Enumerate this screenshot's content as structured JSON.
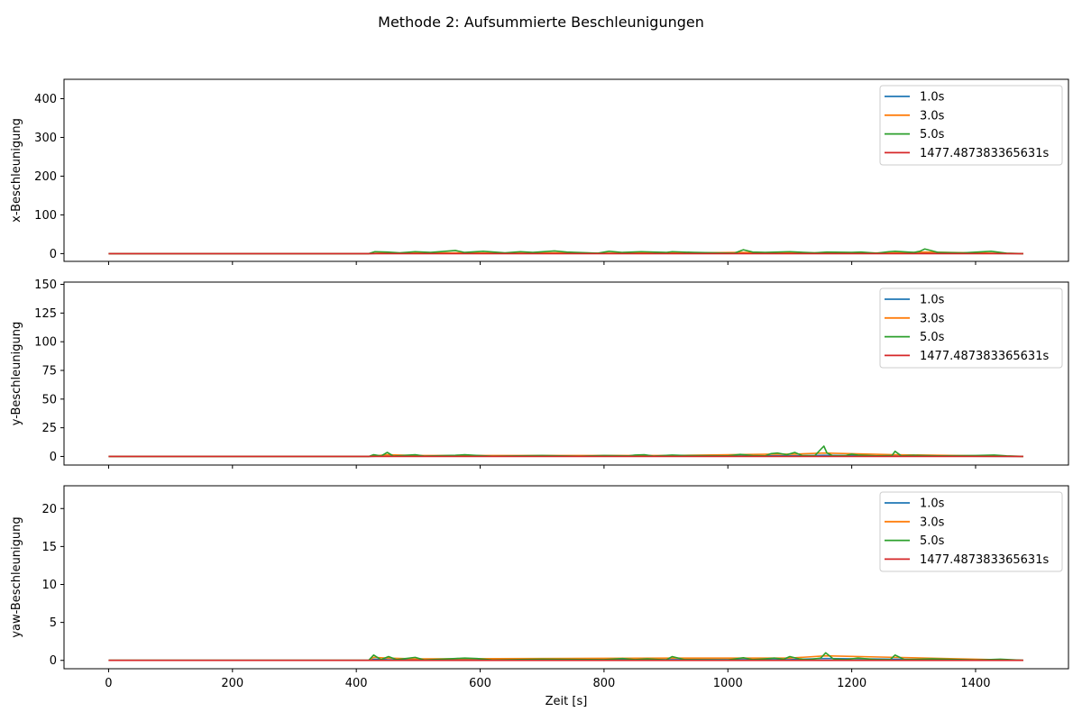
{
  "title": "Methode 2: Aufsummierte Beschleunigungen",
  "xlabel": "Zeit [s]",
  "colors": {
    "series_1": "#1f77b4",
    "series_2": "#ff7f0e",
    "series_3": "#2ca02c",
    "series_4": "#d62728"
  },
  "chart_data": [
    {
      "type": "line",
      "ylabel": "x-Beschleunigung",
      "xlim": [
        -72,
        1550
      ],
      "ylim": [
        -20,
        450
      ],
      "xticks": [
        0,
        200,
        400,
        600,
        800,
        1000,
        1200,
        1400
      ],
      "yticks": [
        0,
        100,
        200,
        300,
        400
      ],
      "show_xtick_labels": false,
      "legend": "top-right",
      "grid": false,
      "series": [
        {
          "name": "1.0s",
          "color": "#1f77b4",
          "x": [
            0,
            420,
            440,
            480,
            560,
            600,
            680,
            720,
            808,
            850,
            910,
            1020,
            1100,
            1200,
            1270,
            1320,
            1425,
            1477
          ],
          "y": [
            0,
            0,
            0.8,
            0.6,
            1.2,
            0.8,
            0.6,
            1,
            0.5,
            0.8,
            0.7,
            1.5,
            1.1,
            0.8,
            1,
            2,
            0.5,
            0
          ]
        },
        {
          "name": "3.0s",
          "color": "#ff7f0e",
          "x": [
            0,
            420,
            440,
            480,
            560,
            600,
            680,
            720,
            808,
            850,
            910,
            1020,
            1100,
            1200,
            1270,
            1320,
            1425,
            1477
          ],
          "y": [
            0,
            0,
            1.5,
            1,
            2,
            1.5,
            1.2,
            2,
            1,
            1.5,
            1.5,
            3,
            2,
            1.5,
            2,
            4,
            1,
            0
          ]
        },
        {
          "name": "5.0s",
          "color": "#2ca02c",
          "x": [
            0,
            420,
            430,
            450,
            470,
            495,
            520,
            560,
            575,
            605,
            640,
            665,
            685,
            720,
            740,
            790,
            808,
            830,
            860,
            900,
            910,
            945,
            1010,
            1025,
            1040,
            1060,
            1100,
            1140,
            1160,
            1200,
            1215,
            1240,
            1260,
            1270,
            1300,
            1310,
            1318,
            1340,
            1380,
            1425,
            1450,
            1477
          ],
          "y": [
            0,
            0,
            5,
            4,
            2,
            5,
            3,
            8,
            3,
            6,
            2,
            5,
            3,
            7,
            4,
            1,
            6,
            3,
            5,
            3,
            5,
            3,
            1,
            10,
            4,
            3,
            5,
            2,
            4,
            3,
            4,
            1,
            5,
            6,
            3,
            6,
            12,
            3,
            2,
            6,
            1,
            0
          ]
        },
        {
          "name": "1477.487383365631s",
          "color": "#d62728",
          "x": [
            0,
            1477
          ],
          "y": [
            0,
            0
          ]
        }
      ]
    },
    {
      "type": "line",
      "ylabel": "y-Beschleunigung",
      "xlim": [
        -72,
        1550
      ],
      "ylim": [
        -7.5,
        152
      ],
      "xticks": [
        0,
        200,
        400,
        600,
        800,
        1000,
        1200,
        1400
      ],
      "yticks": [
        0,
        25,
        50,
        75,
        100,
        125,
        150
      ],
      "show_xtick_labels": false,
      "legend": "top-right",
      "grid": false,
      "series": [
        {
          "name": "1.0s",
          "color": "#1f77b4",
          "x": [
            0,
            420,
            450,
            495,
            575,
            910,
            1070,
            1108,
            1155,
            1270,
            1477
          ],
          "y": [
            0,
            0,
            0.5,
            0.3,
            0.3,
            0.3,
            0.6,
            0.6,
            1,
            0.5,
            0
          ]
        },
        {
          "name": "3.0s",
          "color": "#ff7f0e",
          "x": [
            0,
            420,
            450,
            495,
            575,
            910,
            1070,
            1108,
            1155,
            1270,
            1477
          ],
          "y": [
            0,
            0,
            1.5,
            0.8,
            0.8,
            0.8,
            2,
            2,
            3,
            1.5,
            0
          ]
        },
        {
          "name": "5.0s",
          "color": "#2ca02c",
          "x": [
            0,
            420,
            428,
            440,
            450,
            460,
            495,
            510,
            560,
            575,
            590,
            620,
            700,
            730,
            760,
            800,
            840,
            850,
            865,
            880,
            910,
            930,
            1000,
            1020,
            1040,
            1060,
            1070,
            1080,
            1095,
            1108,
            1120,
            1140,
            1155,
            1160,
            1170,
            1190,
            1200,
            1210,
            1240,
            1265,
            1270,
            1280,
            1300,
            1340,
            1400,
            1430,
            1450,
            1477
          ],
          "y": [
            0,
            0,
            1.5,
            0.4,
            3.5,
            0.3,
            1.5,
            0.3,
            1,
            1.5,
            1,
            0.2,
            0.8,
            0.5,
            0.2,
            0.8,
            0.5,
            1.2,
            1.5,
            0.3,
            1.2,
            0.8,
            0.5,
            1.8,
            0.8,
            0.5,
            2.5,
            3,
            1.5,
            3.5,
            0.8,
            0.5,
            9,
            3,
            0.5,
            0.8,
            2,
            1.2,
            0.5,
            0.8,
            4.5,
            0.5,
            1,
            0.5,
            0.8,
            1.2,
            0.5,
            0
          ]
        },
        {
          "name": "1477.487383365631s",
          "color": "#d62728",
          "x": [
            0,
            1477
          ],
          "y": [
            0,
            0
          ]
        }
      ]
    },
    {
      "type": "line",
      "ylabel": "yaw-Beschleunigung",
      "xlim": [
        -72,
        1550
      ],
      "ylim": [
        -1.1,
        23
      ],
      "xticks": [
        0,
        200,
        400,
        600,
        800,
        1000,
        1200,
        1400
      ],
      "yticks": [
        0,
        5,
        10,
        15,
        20
      ],
      "xtick_labels": [
        "0",
        "200",
        "400",
        "600",
        "800",
        "1000",
        "1200",
        "1400"
      ],
      "show_xtick_labels": true,
      "legend": "top-right",
      "grid": false,
      "series": [
        {
          "name": "1.0s",
          "color": "#1f77b4",
          "x": [
            0,
            420,
            428,
            450,
            495,
            910,
            1100,
            1158,
            1270,
            1477
          ],
          "y": [
            0,
            0,
            0.15,
            0.1,
            0.08,
            0.1,
            0.1,
            0.25,
            0.15,
            0
          ]
        },
        {
          "name": "3.0s",
          "color": "#ff7f0e",
          "x": [
            0,
            420,
            428,
            450,
            495,
            910,
            1100,
            1158,
            1270,
            1477
          ],
          "y": [
            0,
            0,
            0.4,
            0.3,
            0.2,
            0.3,
            0.3,
            0.6,
            0.4,
            0
          ]
        },
        {
          "name": "5.0s",
          "color": "#2ca02c",
          "x": [
            0,
            420,
            428,
            440,
            452,
            465,
            495,
            510,
            560,
            575,
            595,
            620,
            700,
            800,
            830,
            850,
            870,
            900,
            910,
            930,
            1000,
            1025,
            1040,
            1060,
            1075,
            1090,
            1100,
            1115,
            1130,
            1150,
            1158,
            1170,
            1190,
            1210,
            1240,
            1262,
            1270,
            1285,
            1330,
            1400,
            1420,
            1440,
            1477
          ],
          "y": [
            0,
            0,
            0.7,
            0.1,
            0.5,
            0.1,
            0.4,
            0.05,
            0.25,
            0.3,
            0.25,
            0.05,
            0.15,
            0.1,
            0.25,
            0.1,
            0.2,
            0.05,
            0.5,
            0.1,
            0.05,
            0.35,
            0.1,
            0.2,
            0.3,
            0.15,
            0.5,
            0.2,
            0.1,
            0.3,
            1.0,
            0.2,
            0.1,
            0.3,
            0.1,
            0.1,
            0.7,
            0.1,
            0.2,
            0.05,
            0.1,
            0.15,
            0
          ]
        },
        {
          "name": "1477.487383365631s",
          "color": "#d62728",
          "x": [
            0,
            1477
          ],
          "y": [
            0,
            0
          ]
        }
      ]
    }
  ]
}
